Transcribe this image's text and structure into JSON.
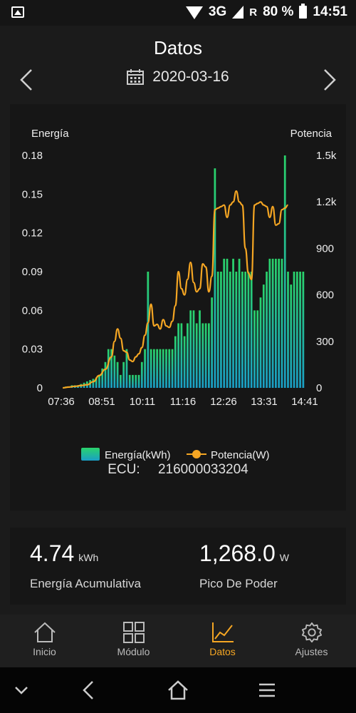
{
  "status": {
    "network": "3G",
    "roaming": "R",
    "battery": "80 %",
    "time": "14:51"
  },
  "header": {
    "title": "Datos",
    "date": "2020-03-16"
  },
  "chart_data": {
    "type": "bar+line",
    "left_axis_label": "Energía",
    "right_axis_label": "Potencia",
    "left_ticks": [
      "0",
      "0.03",
      "0.06",
      "0.09",
      "0.12",
      "0.15",
      "0.18"
    ],
    "right_ticks": [
      "0",
      "300",
      "600",
      "900",
      "1.2k",
      "1.5k"
    ],
    "x_ticks": [
      "07:36",
      "08:51",
      "10:11",
      "11:16",
      "12:26",
      "13:31",
      "14:41"
    ],
    "y_left_range": [
      0,
      0.18
    ],
    "y_right_range": [
      0,
      1500
    ],
    "energy": [
      0,
      0.001,
      0.001,
      0.002,
      0.002,
      0.002,
      0.003,
      0.004,
      0.005,
      0.006,
      0.007,
      0.008,
      0.01,
      0.015,
      0.02,
      0.03,
      0.03,
      0.025,
      0.02,
      0.01,
      0.02,
      0.03,
      0.01,
      0.01,
      0.01,
      0.01,
      0.02,
      0.03,
      0.09,
      0.03,
      0.03,
      0.03,
      0.03,
      0.03,
      0.03,
      0.03,
      0.03,
      0.04,
      0.05,
      0.05,
      0.04,
      0.05,
      0.06,
      0.06,
      0.05,
      0.06,
      0.05,
      0.05,
      0.05,
      0.07,
      0.17,
      0.09,
      0.09,
      0.1,
      0.1,
      0.09,
      0.1,
      0.09,
      0.1,
      0.09,
      0.09,
      0.09,
      0.09,
      0.06,
      0.06,
      0.07,
      0.08,
      0.09,
      0.1,
      0.1,
      0.1,
      0.1,
      0.1,
      0.18,
      0.09,
      0.08,
      0.09,
      0.09,
      0.09,
      0.09
    ],
    "power": [
      [
        0,
        0
      ],
      [
        2,
        5
      ],
      [
        4,
        10
      ],
      [
        6,
        15
      ],
      [
        8,
        20
      ],
      [
        10,
        40
      ],
      [
        12,
        80
      ],
      [
        14,
        120
      ],
      [
        16,
        200
      ],
      [
        17,
        300
      ],
      [
        18,
        380
      ],
      [
        19,
        320
      ],
      [
        20,
        240
      ],
      [
        21,
        230
      ],
      [
        22,
        180
      ],
      [
        23,
        170
      ],
      [
        24,
        200
      ],
      [
        25,
        220
      ],
      [
        26,
        260
      ],
      [
        27,
        340
      ],
      [
        28,
        420
      ],
      [
        29,
        540
      ],
      [
        30,
        400
      ],
      [
        31,
        410
      ],
      [
        32,
        380
      ],
      [
        33,
        440
      ],
      [
        34,
        400
      ],
      [
        35,
        390
      ],
      [
        36,
        430
      ],
      [
        37,
        530
      ],
      [
        38,
        750
      ],
      [
        39,
        640
      ],
      [
        40,
        600
      ],
      [
        41,
        700
      ],
      [
        42,
        810
      ],
      [
        43,
        680
      ],
      [
        44,
        620
      ],
      [
        45,
        640
      ],
      [
        46,
        800
      ],
      [
        47,
        780
      ],
      [
        48,
        620
      ],
      [
        49,
        720
      ],
      [
        50,
        1150
      ],
      [
        51,
        1160
      ],
      [
        52,
        1170
      ],
      [
        53,
        1180
      ],
      [
        54,
        1100
      ],
      [
        55,
        1180
      ],
      [
        56,
        1200
      ],
      [
        57,
        1270
      ],
      [
        58,
        1200
      ],
      [
        59,
        1180
      ],
      [
        60,
        900
      ],
      [
        61,
        740
      ],
      [
        62,
        700
      ],
      [
        63,
        1180
      ],
      [
        64,
        1190
      ],
      [
        65,
        1200
      ],
      [
        66,
        1180
      ],
      [
        67,
        1170
      ],
      [
        68,
        1100
      ],
      [
        69,
        1170
      ],
      [
        70,
        1050
      ],
      [
        71,
        1060
      ],
      [
        72,
        1150
      ],
      [
        73,
        1160
      ],
      [
        74,
        1180
      ]
    ],
    "legend": {
      "energy": "Energía(kWh)",
      "power": "Potencia(W)"
    },
    "colors": {
      "bar_top": "#2ad36b",
      "bar_bottom": "#1a9fc6",
      "line": "#f5a623"
    }
  },
  "ecu": {
    "label": "ECU:",
    "value": "216000033204"
  },
  "stats": {
    "energy": {
      "value": "4.74",
      "unit": "kWh",
      "label": "Energía Acumulativa"
    },
    "peak": {
      "value": "1,268.0",
      "unit": "W",
      "label": "Pico De Poder"
    }
  },
  "tabs": [
    {
      "label": "Inicio",
      "icon": "home-icon"
    },
    {
      "label": "Módulo",
      "icon": "grid-icon"
    },
    {
      "label": "Datos",
      "icon": "chart-icon"
    },
    {
      "label": "Ajustes",
      "icon": "gear-icon"
    }
  ]
}
